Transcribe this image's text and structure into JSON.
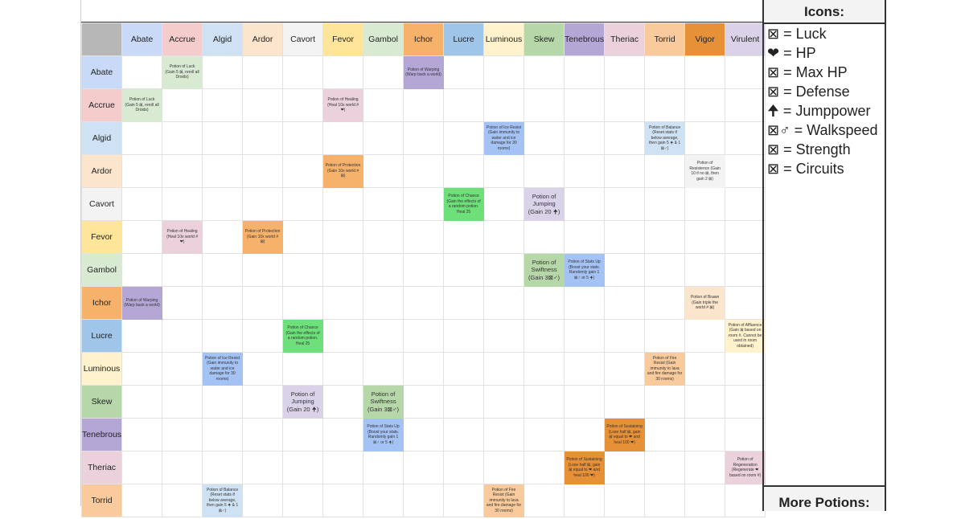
{
  "legend": {
    "title": "Icons:",
    "items": [
      {
        "icon": "⊠",
        "label": "= Luck"
      },
      {
        "icon": "❤",
        "label": "= HP"
      },
      {
        "icon": "⊠",
        "label": "= Max HP"
      },
      {
        "icon": "⊠",
        "label": "= Defense"
      },
      {
        "icon": "🠉",
        "label": "= Jumppower"
      },
      {
        "icon": "⊠♂",
        "label": "= Walkspeed"
      },
      {
        "icon": "⊠",
        "label": "= Strength"
      },
      {
        "icon": "⊠",
        "label": "= Circuits"
      }
    ],
    "more_title": "More Potions:"
  },
  "ingredients": [
    {
      "name": "Abate",
      "color": "#c9daf8"
    },
    {
      "name": "Accrue",
      "color": "#f4cccc"
    },
    {
      "name": "Algid",
      "color": "#cfe2f3"
    },
    {
      "name": "Ardor",
      "color": "#fce5cd"
    },
    {
      "name": "Cavort",
      "color": "#f3f3f3"
    },
    {
      "name": "Fevor",
      "color": "#ffe599"
    },
    {
      "name": "Gambol",
      "color": "#d9ead3"
    },
    {
      "name": "Ichor",
      "color": "#f6b26b"
    },
    {
      "name": "Lucre",
      "color": "#9fc5e8"
    },
    {
      "name": "Luminous",
      "color": "#fff2cc"
    },
    {
      "name": "Skew",
      "color": "#b6d7a8"
    },
    {
      "name": "Tenebrous",
      "color": "#b4a7d6"
    },
    {
      "name": "Theriac",
      "color": "#ead1dc"
    },
    {
      "name": "Torrid",
      "color": "#f9cb9c"
    },
    {
      "name": "Vigor",
      "color": "#e69138"
    },
    {
      "name": "Virulent",
      "color": "#d9d2e9"
    }
  ],
  "potions": {
    "luck": {
      "text": "Potion of Luck (Gain 5 ⊠, reroll all Droids)",
      "color": "#d9ead3"
    },
    "warping": {
      "text": "Potion of Warping (Warp back a world)",
      "color": "#b4a7d6"
    },
    "healing": {
      "text": "Potion of Healing (Heal 10x world # ❤)",
      "color": "#ead1dc"
    },
    "ice": {
      "text": "Potion of Ice Resist (Gain immunity to water and ice damage for 30 rooms)",
      "color": "#a4c2f4"
    },
    "balance": {
      "text": "Potion of Balance (Reset stats if below average, then gain 5 🠉 & 1 ⊠♂)",
      "color": "#cfe2f3"
    },
    "protection": {
      "text": "Potion of Protection (Gain 10x world # ⊠)",
      "color": "#f6b26b"
    },
    "resistance": {
      "text": "Potion of Resistence (Gain 10 if no ⊠, then gain 2 ⊠)",
      "color": "#f3f3f3"
    },
    "chance": {
      "text": "Potion of Chance (Gain the effects of a random potion. Heal 25",
      "color": "#6ee07a"
    },
    "jumping": {
      "text": "Potion of Jumping (Gain 20 🠉)",
      "color": "#d9d2e9"
    },
    "swiftness": {
      "text": "Potion of Swiftness (Gain 3⊠♂)",
      "color": "#b6d7a8"
    },
    "statsup": {
      "text": "Potion of Stats Up (Boost your stats. Randomly gain 1 ⊠♂ or 5 🠉)",
      "color": "#a4c2f4"
    },
    "brawn": {
      "text": "Potion of Brawn (Gain triple the world # ⊠)",
      "color": "#fce5cd"
    },
    "affluence": {
      "text": "Potion of Affluence (Gain ⊠ based on room #. Cannot be used in room obtained)",
      "color": "#fff2cc"
    },
    "fire": {
      "text": "Potion of Fire Resist (Gain immunity to lava and fire damage for 30 rooms)",
      "color": "#f9cb9c"
    },
    "sustaining": {
      "text": "Potion of Sustaining (Lose half ⊠, gain ⊠ equal to ❤ and heal 100 ❤)",
      "color": "#e69138"
    },
    "regeneration": {
      "text": "Potion of Regeneration (Regenerate ❤ based on room #)",
      "color": "#ead1dc"
    }
  },
  "rows": [
    {
      "name": "Abate",
      "cells": {
        "1": "luck",
        "7": "warping"
      }
    },
    {
      "name": "Accrue",
      "cells": {
        "0": "luck",
        "5": "healing"
      }
    },
    {
      "name": "Algid",
      "cells": {
        "9": "ice",
        "13": "balance"
      }
    },
    {
      "name": "Ardor",
      "cells": {
        "5": "protection",
        "14": "resistance"
      }
    },
    {
      "name": "Cavort",
      "cells": {
        "8": "chance",
        "10": "jumping"
      }
    },
    {
      "name": "Fevor",
      "cells": {
        "1": "healing",
        "3": "protection"
      }
    },
    {
      "name": "Gambol",
      "cells": {
        "10": "swiftness",
        "11": "statsup"
      }
    },
    {
      "name": "Ichor",
      "cells": {
        "0": "warping",
        "14": "brawn"
      }
    },
    {
      "name": "Lucre",
      "cells": {
        "4": "chance",
        "15": "affluence"
      }
    },
    {
      "name": "Luminous",
      "cells": {
        "2": "ice",
        "13": "fire"
      }
    },
    {
      "name": "Skew",
      "cells": {
        "4": "jumping",
        "6": "swiftness"
      }
    },
    {
      "name": "Tenebrous",
      "cells": {
        "6": "statsup",
        "12": "sustaining"
      }
    },
    {
      "name": "Theriac",
      "cells": {
        "11": "sustaining",
        "15": "regeneration"
      }
    },
    {
      "name": "Torrid",
      "cells": {
        "2": "balance",
        "9": "fire"
      }
    }
  ]
}
